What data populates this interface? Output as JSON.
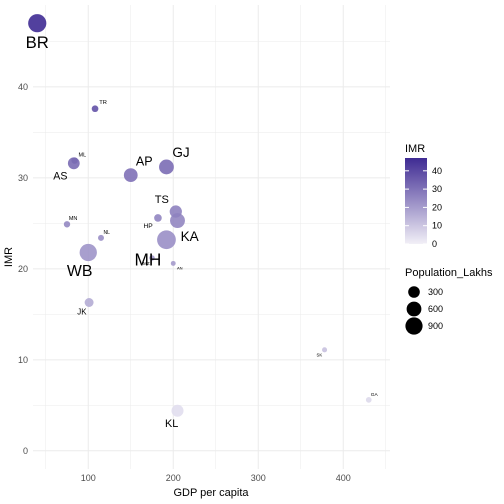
{
  "chart_data": {
    "type": "scatter",
    "xlabel": "GDP per capita",
    "ylabel": "IMR",
    "xlim": [
      35,
      455
    ],
    "ylim": [
      -2,
      49
    ],
    "x_ticks": [
      100,
      200,
      300,
      400
    ],
    "y_ticks": [
      0,
      10,
      20,
      30,
      40
    ],
    "grid": true,
    "points": [
      {
        "label": "BR",
        "x": 40,
        "y": 47.0,
        "imr": 47.0,
        "population": 1040
      },
      {
        "label": "TR",
        "x": 108,
        "y": 37.6,
        "imr": 37.6,
        "population": 37
      },
      {
        "label": "ML",
        "x": 84,
        "y": 31.9,
        "imr": 31.9,
        "population": 30
      },
      {
        "label": "AS",
        "x": 83,
        "y": 31.6,
        "imr": 31.6,
        "population": 312
      },
      {
        "label": "AP",
        "x": 150,
        "y": 30.3,
        "imr": 30.3,
        "population": 494
      },
      {
        "label": "GJ",
        "x": 192,
        "y": 31.2,
        "imr": 31.2,
        "population": 604
      },
      {
        "label": "TS",
        "x": 203,
        "y": 26.3,
        "imr": 26.3,
        "population": 352
      },
      {
        "label": "KA",
        "x": 205,
        "y": 25.3,
        "imr": 25.3,
        "population": 611
      },
      {
        "label": "HP",
        "x": 182,
        "y": 25.6,
        "imr": 25.6,
        "population": 69
      },
      {
        "label": "MN",
        "x": 75,
        "y": 24.9,
        "imr": 24.9,
        "population": 29
      },
      {
        "label": "NL",
        "x": 115,
        "y": 23.4,
        "imr": 23.4,
        "population": 20
      },
      {
        "label": "MH",
        "x": 192,
        "y": 23.2,
        "imr": 23.2,
        "population": 1124
      },
      {
        "label": "MZ",
        "x": 175,
        "y": 21.2,
        "imr": 21.2,
        "population": 11
      },
      {
        "label": "AN",
        "x": 200,
        "y": 20.6,
        "imr": 20.6,
        "population": 4
      },
      {
        "label": "WB",
        "x": 100,
        "y": 21.8,
        "imr": 21.8,
        "population": 913
      },
      {
        "label": "JK",
        "x": 101,
        "y": 16.3,
        "imr": 16.3,
        "population": 125
      },
      {
        "label": "SK",
        "x": 378,
        "y": 11.1,
        "imr": 11.1,
        "population": 6
      },
      {
        "label": "GA",
        "x": 430,
        "y": 5.6,
        "imr": 5.6,
        "population": 15
      },
      {
        "label": "KL",
        "x": 205,
        "y": 4.4,
        "imr": 4.4,
        "population": 335
      }
    ],
    "legend": {
      "color_title": "IMR",
      "color_ticks": [
        0,
        10,
        20,
        30,
        40
      ],
      "color_range": [
        0,
        47
      ],
      "size_title": "Population_Lakhs",
      "size_ticks": [
        300,
        600,
        900
      ],
      "placement": "right"
    }
  },
  "colors": {
    "low": "#f2f0f7",
    "high": "#3f2b93",
    "grid": "#ebebeb",
    "text": "#4d4d4d"
  }
}
